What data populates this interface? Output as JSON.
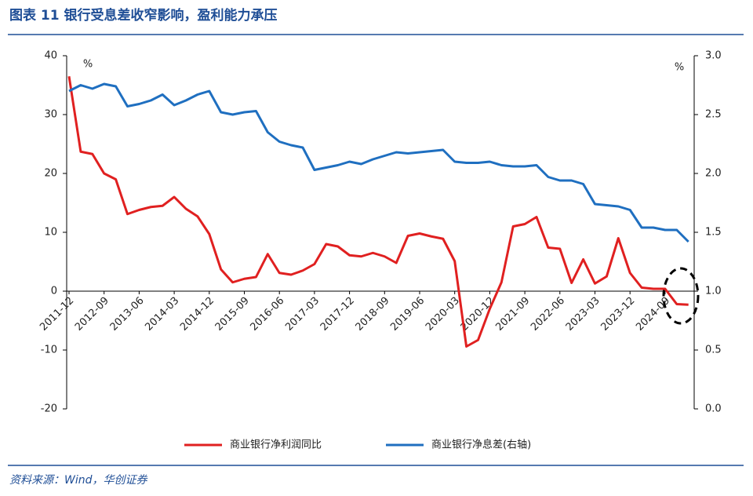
{
  "header": {
    "title": "图表 11 银行受息差收窄影响，盈利能力承压"
  },
  "chart_data": {
    "type": "line",
    "y_unit": "%",
    "y2_unit": "%",
    "categories": [
      "2011-12",
      null,
      null,
      "2012-09",
      null,
      null,
      "2013-06",
      null,
      null,
      "2014-03",
      null,
      null,
      "2014-12",
      null,
      null,
      "2015-09",
      null,
      null,
      "2016-06",
      null,
      null,
      "2017-03",
      null,
      null,
      "2017-12",
      null,
      null,
      "2018-09",
      null,
      null,
      "2019-06",
      null,
      null,
      "2020-03",
      null,
      null,
      "2020-12",
      null,
      null,
      "2021-09",
      null,
      null,
      "2022-06",
      null,
      null,
      "2023-03",
      null,
      null,
      "2023-12",
      null,
      null,
      "2024-09",
      null,
      null
    ],
    "series": [
      {
        "name": "商业银行净利润同比",
        "color": "#e02020",
        "axis": "y",
        "values": [
          36.5,
          23.7,
          23.3,
          20,
          19,
          13.1,
          13.8,
          14.3,
          14.5,
          16,
          14,
          12.7,
          9.7,
          3.7,
          1.5,
          2.1,
          2.4,
          6.3,
          3.1,
          2.8,
          3.5,
          4.6,
          8,
          7.6,
          6.1,
          5.9,
          6.5,
          5.9,
          4.8,
          9.4,
          9.8,
          9.3,
          8.9,
          5.1,
          -9.4,
          -8.3,
          -3,
          1.5,
          11,
          11.4,
          12.6,
          7.4,
          7.2,
          1.4,
          5.4,
          1.3,
          2.5,
          9,
          3.1,
          0.6,
          0.4,
          0.4,
          -2.2,
          -2.3
        ]
      },
      {
        "name": "商业银行净息差(右轴)",
        "color": "#1f6fc0",
        "axis": "y2",
        "values": [
          2.7,
          2.75,
          2.72,
          2.76,
          2.74,
          2.57,
          2.59,
          2.62,
          2.67,
          2.58,
          2.62,
          2.67,
          2.7,
          2.52,
          2.5,
          2.52,
          2.53,
          2.35,
          2.27,
          2.24,
          2.22,
          2.03,
          2.05,
          2.07,
          2.1,
          2.08,
          2.12,
          2.15,
          2.18,
          2.17,
          2.18,
          2.19,
          2.2,
          2.1,
          2.09,
          2.09,
          2.1,
          2.07,
          2.06,
          2.06,
          2.07,
          1.97,
          1.94,
          1.94,
          1.91,
          1.74,
          1.73,
          1.72,
          1.69,
          1.54,
          1.54,
          1.52,
          1.52,
          1.42
        ]
      }
    ],
    "ylim": [
      -20,
      40
    ],
    "yticks": [
      -20,
      -10,
      0,
      10,
      20,
      30,
      40
    ],
    "y2lim": [
      0,
      3
    ],
    "y2ticks": [
      {
        "value": 0,
        "label": "0.0"
      },
      0.5,
      {
        "value": 1,
        "label": "1.0"
      },
      1.5,
      {
        "value": 2,
        "label": "2.0"
      },
      2.5,
      {
        "value": 3,
        "label": "3.0"
      }
    ],
    "legend": "bottom"
  },
  "footer": {
    "source": "资料来源：Wind，华创证券"
  }
}
